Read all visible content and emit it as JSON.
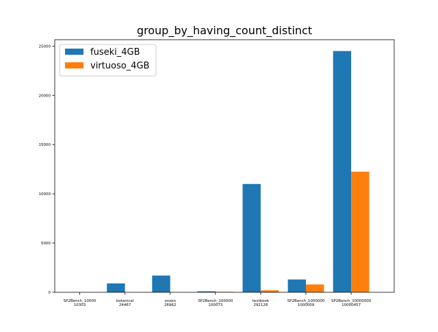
{
  "chart_data": {
    "type": "bar",
    "title": "group_by_having_count_distinct",
    "xlabel": "",
    "ylabel": "",
    "categories": [
      [
        "SP2Bench_10000",
        "10303"
      ],
      [
        "botanical",
        "24467"
      ],
      [
        "onsen",
        "26962"
      ],
      [
        "SP2Bench_100000",
        "100073"
      ],
      [
        "textbook",
        "292128"
      ],
      [
        "SP2Bench_1000000",
        "1000009"
      ],
      [
        "SP2Bench_10000000",
        "10000457"
      ]
    ],
    "series": [
      {
        "name": "fuseki_4GB",
        "color": "#1f77b4",
        "values": [
          0,
          900,
          1700,
          100,
          11000,
          1300,
          24500
        ]
      },
      {
        "name": "virtuoso_4GB",
        "color": "#ff7f0e",
        "values": [
          0,
          0,
          0,
          50,
          200,
          800,
          12250
        ]
      }
    ],
    "ylim": [
      0,
      25650
    ],
    "yticks": [
      0,
      5000,
      10000,
      15000,
      20000,
      25000
    ],
    "grid": false,
    "legend": "top-left"
  }
}
